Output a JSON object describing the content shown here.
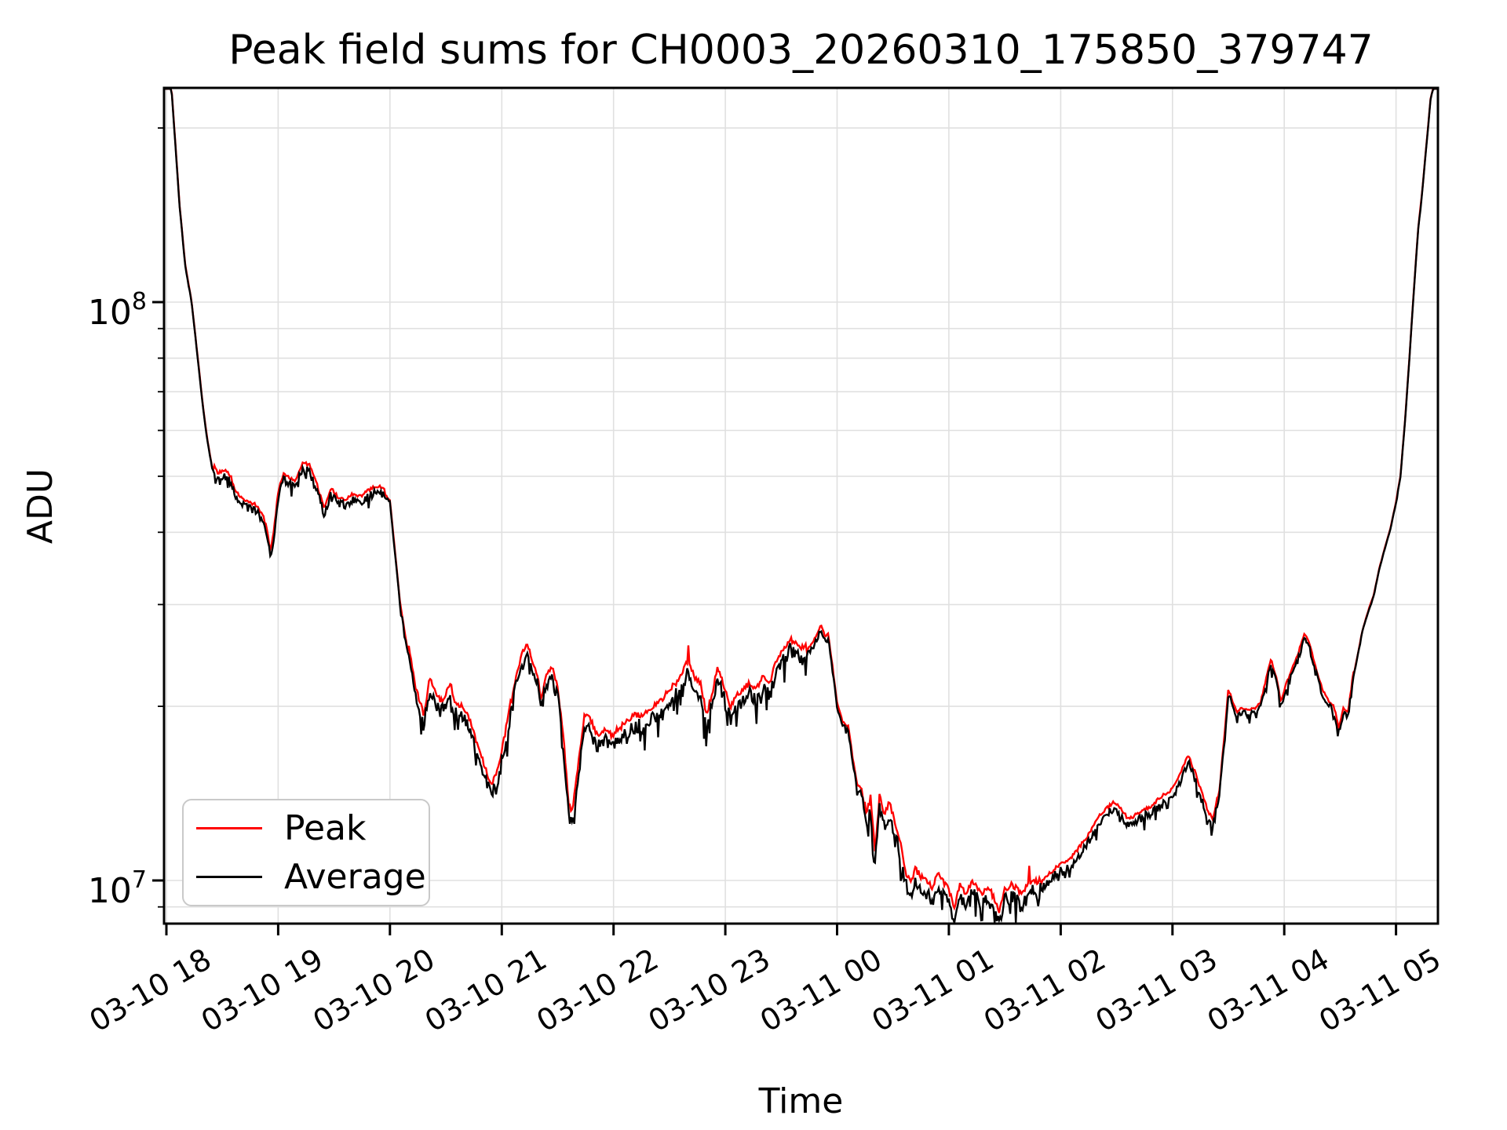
{
  "chart_data": {
    "type": "line",
    "title": "Peak field sums for CH0003_20260310_175850_379747",
    "xlabel": "Time",
    "ylabel": "ADU",
    "y_scale": "log",
    "grid": true,
    "x_range_hours_since_0310_1800": [
      -0.021,
      11.375
    ],
    "y_range_adu": [
      8420000,
      234500000
    ],
    "x_ticks": [
      {
        "hour": 0,
        "label": "03-10 18"
      },
      {
        "hour": 1,
        "label": "03-10 19"
      },
      {
        "hour": 2,
        "label": "03-10 20"
      },
      {
        "hour": 3,
        "label": "03-10 21"
      },
      {
        "hour": 4,
        "label": "03-10 22"
      },
      {
        "hour": 5,
        "label": "03-10 23"
      },
      {
        "hour": 6,
        "label": "03-11 00"
      },
      {
        "hour": 7,
        "label": "03-11 01"
      },
      {
        "hour": 8,
        "label": "03-11 02"
      },
      {
        "hour": 9,
        "label": "03-11 03"
      },
      {
        "hour": 10,
        "label": "03-11 04"
      },
      {
        "hour": 11,
        "label": "03-11 05"
      }
    ],
    "y_major_ticks": [
      {
        "base": "10",
        "exp": "7",
        "value": 10000000
      },
      {
        "base": "10",
        "exp": "8",
        "value": 100000000
      }
    ],
    "y_minor_tick_values": [
      9000000,
      20000000,
      30000000,
      40000000,
      50000000,
      60000000,
      70000000,
      80000000,
      90000000,
      200000000
    ],
    "legend": {
      "position": "lower left",
      "items": [
        {
          "label": "Peak",
          "color": "#ff0000"
        },
        {
          "label": "Average",
          "color": "#000000"
        }
      ]
    },
    "colors": {
      "grid": "#e0e0e0",
      "spine": "#000000",
      "peak": "#ff0000",
      "average": "#000000"
    },
    "average_anchors": [
      [
        -0.021,
        234500000
      ],
      [
        0.045,
        234500000
      ],
      [
        0.07,
        200000000
      ],
      [
        0.12,
        145000000
      ],
      [
        0.17,
        115000000
      ],
      [
        0.225,
        100000000
      ],
      [
        0.28,
        80000000
      ],
      [
        0.33,
        65000000
      ],
      [
        0.37,
        57000000
      ],
      [
        0.41,
        51500000
      ],
      [
        0.46,
        49500000
      ],
      [
        0.52,
        50000000
      ],
      [
        0.57,
        49000000
      ],
      [
        0.62,
        46000000
      ],
      [
        0.68,
        44500000
      ],
      [
        0.74,
        44000000
      ],
      [
        0.8,
        43500000
      ],
      [
        0.86,
        42000000
      ],
      [
        0.9,
        39500000
      ],
      [
        0.93,
        36200000
      ],
      [
        0.96,
        39000000
      ],
      [
        1.0,
        46000000
      ],
      [
        1.05,
        49500000
      ],
      [
        1.1,
        48500000
      ],
      [
        1.15,
        48000000
      ],
      [
        1.22,
        51500000
      ],
      [
        1.28,
        51000000
      ],
      [
        1.35,
        47000000
      ],
      [
        1.41,
        43000000
      ],
      [
        1.47,
        46500000
      ],
      [
        1.53,
        45000000
      ],
      [
        1.6,
        44500000
      ],
      [
        1.67,
        45500000
      ],
      [
        1.74,
        45000000
      ],
      [
        1.8,
        46000000
      ],
      [
        1.88,
        47000000
      ],
      [
        1.94,
        46500000
      ],
      [
        2.0,
        45000000
      ],
      [
        2.05,
        36000000
      ],
      [
        2.09,
        30000000
      ],
      [
        2.14,
        26000000
      ],
      [
        2.18,
        23400000
      ],
      [
        2.23,
        20500000
      ],
      [
        2.27,
        19500000
      ],
      [
        2.3,
        18500000
      ],
      [
        2.36,
        21500000
      ],
      [
        2.41,
        20000000
      ],
      [
        2.46,
        19500000
      ],
      [
        2.5,
        20000000
      ],
      [
        2.54,
        21000000
      ],
      [
        2.58,
        19500000
      ],
      [
        2.63,
        19200000
      ],
      [
        2.68,
        18700000
      ],
      [
        2.74,
        17500000
      ],
      [
        2.8,
        16000000
      ],
      [
        2.85,
        15000000
      ],
      [
        2.9,
        14000000
      ],
      [
        2.95,
        14500000
      ],
      [
        3.0,
        16000000
      ],
      [
        3.05,
        18000000
      ],
      [
        3.12,
        21500000
      ],
      [
        3.18,
        24000000
      ],
      [
        3.23,
        25000000
      ],
      [
        3.28,
        23000000
      ],
      [
        3.32,
        22000000
      ],
      [
        3.35,
        20000000
      ],
      [
        3.4,
        22000000
      ],
      [
        3.45,
        22800000
      ],
      [
        3.5,
        21000000
      ],
      [
        3.55,
        17000000
      ],
      [
        3.6,
        13000000
      ],
      [
        3.63,
        12500000
      ],
      [
        3.68,
        15000000
      ],
      [
        3.74,
        18500000
      ],
      [
        3.8,
        18000000
      ],
      [
        3.86,
        17000000
      ],
      [
        3.92,
        17500000
      ],
      [
        3.98,
        17000000
      ],
      [
        4.05,
        17500000
      ],
      [
        4.12,
        18000000
      ],
      [
        4.2,
        18500000
      ],
      [
        4.28,
        18500000
      ],
      [
        4.35,
        19000000
      ],
      [
        4.42,
        19500000
      ],
      [
        4.5,
        20500000
      ],
      [
        4.56,
        21000000
      ],
      [
        4.62,
        22000000
      ],
      [
        4.67,
        23000000
      ],
      [
        4.72,
        21500000
      ],
      [
        4.78,
        21000000
      ],
      [
        4.83,
        18500000
      ],
      [
        4.88,
        20000000
      ],
      [
        4.93,
        22500000
      ],
      [
        4.98,
        21000000
      ],
      [
        5.04,
        19000000
      ],
      [
        5.1,
        20000000
      ],
      [
        5.16,
        20500000
      ],
      [
        5.22,
        21000000
      ],
      [
        5.28,
        20500000
      ],
      [
        5.34,
        21500000
      ],
      [
        5.4,
        21000000
      ],
      [
        5.46,
        23000000
      ],
      [
        5.52,
        24000000
      ],
      [
        5.58,
        25000000
      ],
      [
        5.63,
        24500000
      ],
      [
        5.68,
        24000000
      ],
      [
        5.73,
        24500000
      ],
      [
        5.79,
        25500000
      ],
      [
        5.86,
        27200000
      ],
      [
        5.89,
        26000000
      ],
      [
        5.92,
        26200000
      ],
      [
        5.96,
        23000000
      ],
      [
        6.0,
        20000000
      ],
      [
        6.05,
        18500000
      ],
      [
        6.1,
        18200000
      ],
      [
        6.14,
        16000000
      ],
      [
        6.18,
        14400000
      ],
      [
        6.22,
        14200000
      ],
      [
        6.26,
        12500000
      ],
      [
        6.3,
        13300000
      ],
      [
        6.34,
        10700000
      ],
      [
        6.38,
        13400000
      ],
      [
        6.42,
        12500000
      ],
      [
        6.47,
        13000000
      ],
      [
        6.52,
        12000000
      ],
      [
        6.57,
        11000000
      ],
      [
        6.62,
        9800000
      ],
      [
        6.66,
        9400000
      ],
      [
        6.7,
        10000000
      ],
      [
        6.75,
        9700000
      ],
      [
        6.8,
        9500000
      ],
      [
        6.85,
        9300000
      ],
      [
        6.9,
        9800000
      ],
      [
        6.95,
        9500000
      ],
      [
        7.0,
        9200000
      ],
      [
        7.05,
        8600000
      ],
      [
        7.1,
        9400000
      ],
      [
        7.15,
        9000000
      ],
      [
        7.2,
        9500000
      ],
      [
        7.25,
        9300000
      ],
      [
        7.3,
        9000000
      ],
      [
        7.35,
        9400000
      ],
      [
        7.4,
        8900000
      ],
      [
        7.45,
        8450000
      ],
      [
        7.5,
        9200000
      ],
      [
        7.55,
        9400000
      ],
      [
        7.6,
        9300000
      ],
      [
        7.65,
        9000000
      ],
      [
        7.7,
        9400000
      ],
      [
        7.75,
        9600000
      ],
      [
        7.8,
        9500000
      ],
      [
        7.85,
        9800000
      ],
      [
        7.9,
        10000000
      ],
      [
        7.95,
        10200000
      ],
      [
        8.0,
        10400000
      ],
      [
        8.06,
        10500000
      ],
      [
        8.12,
        10800000
      ],
      [
        8.18,
        11200000
      ],
      [
        8.24,
        11600000
      ],
      [
        8.3,
        12200000
      ],
      [
        8.36,
        12700000
      ],
      [
        8.42,
        13000000
      ],
      [
        8.48,
        13300000
      ],
      [
        8.54,
        13000000
      ],
      [
        8.6,
        12400000
      ],
      [
        8.66,
        12600000
      ],
      [
        8.72,
        12800000
      ],
      [
        8.78,
        13000000
      ],
      [
        8.84,
        13200000
      ],
      [
        8.9,
        13600000
      ],
      [
        8.96,
        13800000
      ],
      [
        9.02,
        14200000
      ],
      [
        9.08,
        15000000
      ],
      [
        9.14,
        16000000
      ],
      [
        9.2,
        15000000
      ],
      [
        9.26,
        13800000
      ],
      [
        9.32,
        12800000
      ],
      [
        9.36,
        12400000
      ],
      [
        9.42,
        14000000
      ],
      [
        9.47,
        18000000
      ],
      [
        9.5,
        21000000
      ],
      [
        9.54,
        20000000
      ],
      [
        9.58,
        19200000
      ],
      [
        9.63,
        19500000
      ],
      [
        9.68,
        19300000
      ],
      [
        9.74,
        19500000
      ],
      [
        9.79,
        20000000
      ],
      [
        9.84,
        22000000
      ],
      [
        9.88,
        23700000
      ],
      [
        9.93,
        22000000
      ],
      [
        9.97,
        20000000
      ],
      [
        10.02,
        21500000
      ],
      [
        10.07,
        22800000
      ],
      [
        10.12,
        24000000
      ],
      [
        10.18,
        26300000
      ],
      [
        10.23,
        25000000
      ],
      [
        10.28,
        23000000
      ],
      [
        10.34,
        21000000
      ],
      [
        10.4,
        20000000
      ],
      [
        10.44,
        19700000
      ],
      [
        10.49,
        18000000
      ],
      [
        10.53,
        19500000
      ],
      [
        10.57,
        19200000
      ],
      [
        10.62,
        22500000
      ],
      [
        10.7,
        27000000
      ],
      [
        10.76,
        29500000
      ],
      [
        10.8,
        31000000
      ],
      [
        10.85,
        34500000
      ],
      [
        10.9,
        37500000
      ],
      [
        10.95,
        40500000
      ],
      [
        11.0,
        45000000
      ],
      [
        11.04,
        50000000
      ],
      [
        11.08,
        62000000
      ],
      [
        11.12,
        80000000
      ],
      [
        11.16,
        105000000
      ],
      [
        11.2,
        135000000
      ],
      [
        11.23,
        152000000
      ],
      [
        11.27,
        185000000
      ],
      [
        11.31,
        225000000
      ],
      [
        11.335,
        234500000
      ],
      [
        11.375,
        234500000
      ]
    ],
    "noise_segments": [
      [
        -0.03,
        0.42,
        0.003
      ],
      [
        0.42,
        1.95,
        0.016
      ],
      [
        1.95,
        2.16,
        0.006
      ],
      [
        2.16,
        3.08,
        0.03
      ],
      [
        3.08,
        3.52,
        0.018
      ],
      [
        3.52,
        5.72,
        0.03
      ],
      [
        5.72,
        5.94,
        0.012
      ],
      [
        5.94,
        6.24,
        0.01
      ],
      [
        6.24,
        7.82,
        0.03
      ],
      [
        7.82,
        9.4,
        0.018
      ],
      [
        9.4,
        10.62,
        0.013
      ],
      [
        10.62,
        11.38,
        0.0025
      ]
    ],
    "peak_red_spikes": [
      [
        4.67,
        25500000
      ],
      [
        7.72,
        10600000
      ]
    ],
    "noise_seed": 1337
  }
}
